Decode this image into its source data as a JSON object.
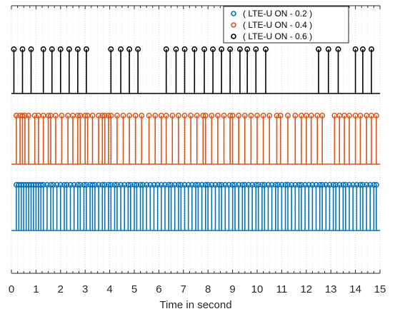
{
  "chart_data": {
    "type": "stem",
    "xlabel": "Time in second",
    "xlim": [
      0,
      15
    ],
    "xticks": [
      "0",
      "1",
      "2",
      "3",
      "4",
      "5",
      "6",
      "7",
      "8",
      "9",
      "10",
      "11",
      "12",
      "13",
      "14",
      "15"
    ],
    "grid": true,
    "legend_position": "top-right",
    "series": [
      {
        "name": "( LTE-U ON - 0.2 )",
        "color": "#0072BD",
        "baseline": 0,
        "level": 1,
        "x": [
          0.2,
          0.3,
          0.4,
          0.5,
          0.6,
          0.7,
          0.8,
          0.9,
          1.0,
          1.1,
          1.2,
          1.3,
          1.45,
          1.6,
          1.7,
          1.85,
          2.0,
          2.15,
          2.25,
          2.4,
          2.55,
          2.7,
          2.8,
          2.95,
          3.05,
          3.2,
          3.3,
          3.4,
          3.55,
          3.7,
          3.8,
          3.95,
          4.05,
          4.2,
          4.3,
          4.45,
          4.6,
          4.75,
          4.85,
          5.0,
          5.1,
          5.25,
          5.35,
          5.5,
          5.65,
          5.8,
          5.95,
          6.1,
          6.25,
          6.4,
          6.5,
          6.65,
          6.8,
          6.9,
          7.05,
          7.2,
          7.35,
          7.5,
          7.6,
          7.75,
          7.9,
          8.0,
          8.15,
          8.3,
          8.45,
          8.55,
          8.7,
          8.85,
          9.0,
          9.1,
          9.25,
          9.4,
          9.5,
          9.65,
          9.8,
          9.95,
          10.05,
          10.2,
          10.3,
          10.45,
          10.6,
          10.75,
          10.85,
          11.0,
          11.15,
          11.25,
          11.4,
          11.55,
          11.7,
          11.8,
          11.95,
          12.1,
          12.25,
          12.4,
          12.55,
          12.65,
          12.8,
          12.95,
          13.1,
          13.2,
          13.35,
          13.5,
          13.6,
          13.75,
          13.9,
          14.05,
          14.2,
          14.3,
          14.45,
          14.6,
          14.75,
          14.85
        ]
      },
      {
        "name": "( LTE-U ON - 0.4 )",
        "color": "#D95319",
        "baseline": 0,
        "level": 1,
        "x": [
          0.2,
          0.35,
          0.45,
          0.55,
          0.7,
          0.95,
          1.1,
          1.3,
          1.5,
          1.6,
          1.8,
          2.05,
          2.3,
          2.5,
          2.7,
          2.8,
          3.0,
          3.1,
          3.3,
          3.55,
          3.7,
          3.8,
          3.95,
          4.05,
          4.3,
          4.55,
          4.8,
          5.05,
          5.3,
          5.6,
          5.85,
          6.1,
          6.3,
          6.55,
          6.8,
          7.05,
          7.3,
          7.55,
          7.8,
          7.9,
          8.15,
          8.4,
          8.65,
          8.9,
          9.0,
          9.25,
          9.5,
          9.75,
          10.0,
          10.25,
          10.5,
          10.8,
          10.95,
          11.25,
          11.55,
          11.8,
          12.0,
          12.2,
          12.45,
          12.65,
          13.15,
          13.35,
          13.55,
          13.75,
          14.0,
          14.2,
          14.45,
          14.65,
          14.85
        ]
      },
      {
        "name": "( LTE-U ON - 0.6 )",
        "color": "#000000",
        "baseline": 0,
        "level": 1,
        "x": [
          0.1,
          0.45,
          0.8,
          1.3,
          1.65,
          2.0,
          2.35,
          2.7,
          3.05,
          4.05,
          4.45,
          4.8,
          5.15,
          6.3,
          6.7,
          7.05,
          7.45,
          7.85,
          8.2,
          8.55,
          8.9,
          9.3,
          9.6,
          9.95,
          10.35,
          12.5,
          12.9,
          13.3,
          14.0,
          14.3,
          14.65
        ]
      }
    ]
  }
}
